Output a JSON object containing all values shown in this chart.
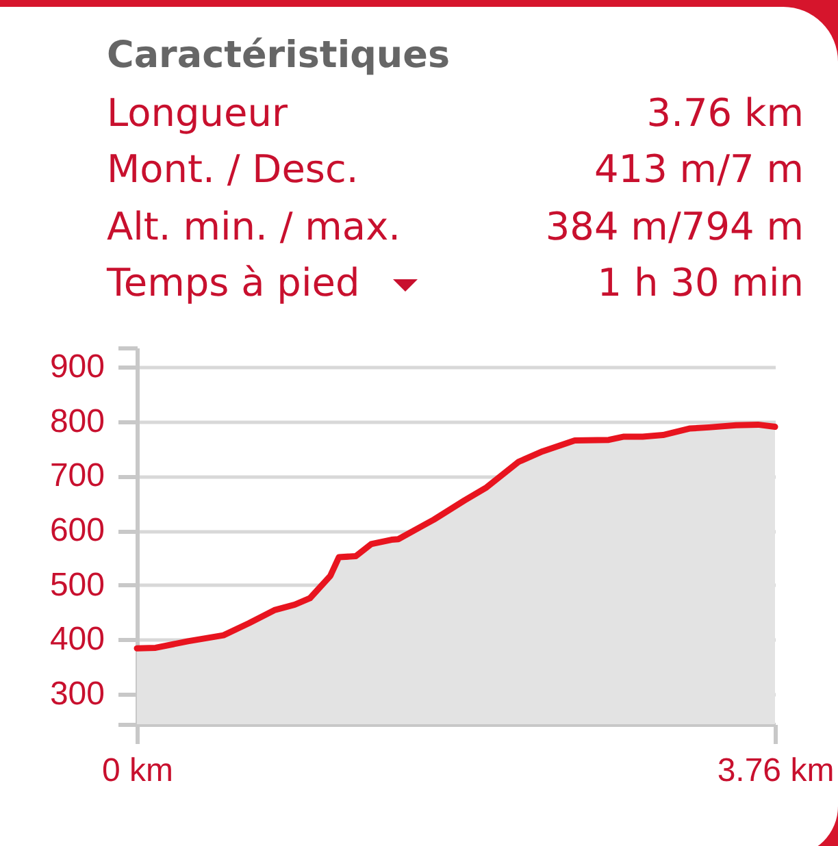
{
  "chart_data": {
    "type": "area",
    "title": "Caractéristiques",
    "annotations": [
      "Longueur",
      "3.76 km",
      "Mont. / Desc.",
      "413 m/7 m",
      "Alt. min. / max.",
      "384 m/794 m",
      "Temps à pied",
      "1 h 30 min"
    ],
    "x": [
      0,
      0.11,
      0.3,
      0.51,
      0.66,
      0.81,
      0.93,
      1.02,
      1.14,
      1.19,
      1.29,
      1.38,
      1.5,
      1.54,
      1.68,
      1.75,
      1.93,
      2.06,
      2.25,
      2.39,
      2.58,
      2.78,
      2.87,
      2.98,
      3.1,
      3.26,
      3.37,
      3.53,
      3.66,
      3.76
    ],
    "series": [
      {
        "color": "#e3e3e3",
        "values": [
          384,
          385,
          397,
          408,
          430,
          454,
          464,
          476,
          517,
          551,
          553,
          575,
          583,
          584,
          608,
          620,
          655,
          679,
          726,
          745,
          765,
          766,
          772,
          772,
          775,
          787,
          789,
          793,
          794,
          790
        ]
      }
    ],
    "xlim": [
      0,
      3.76
    ],
    "xticks": [
      {
        "value": 0,
        "label": "0 km"
      },
      {
        "value": 3.76,
        "label": "3.76 km"
      }
    ],
    "ylim": [
      245,
      935
    ],
    "yticks": [
      {
        "value": 245,
        "label": null
      },
      300,
      400,
      500,
      600,
      700,
      800,
      900,
      {
        "value": 935,
        "label": null
      }
    ],
    "grid": "y"
  }
}
